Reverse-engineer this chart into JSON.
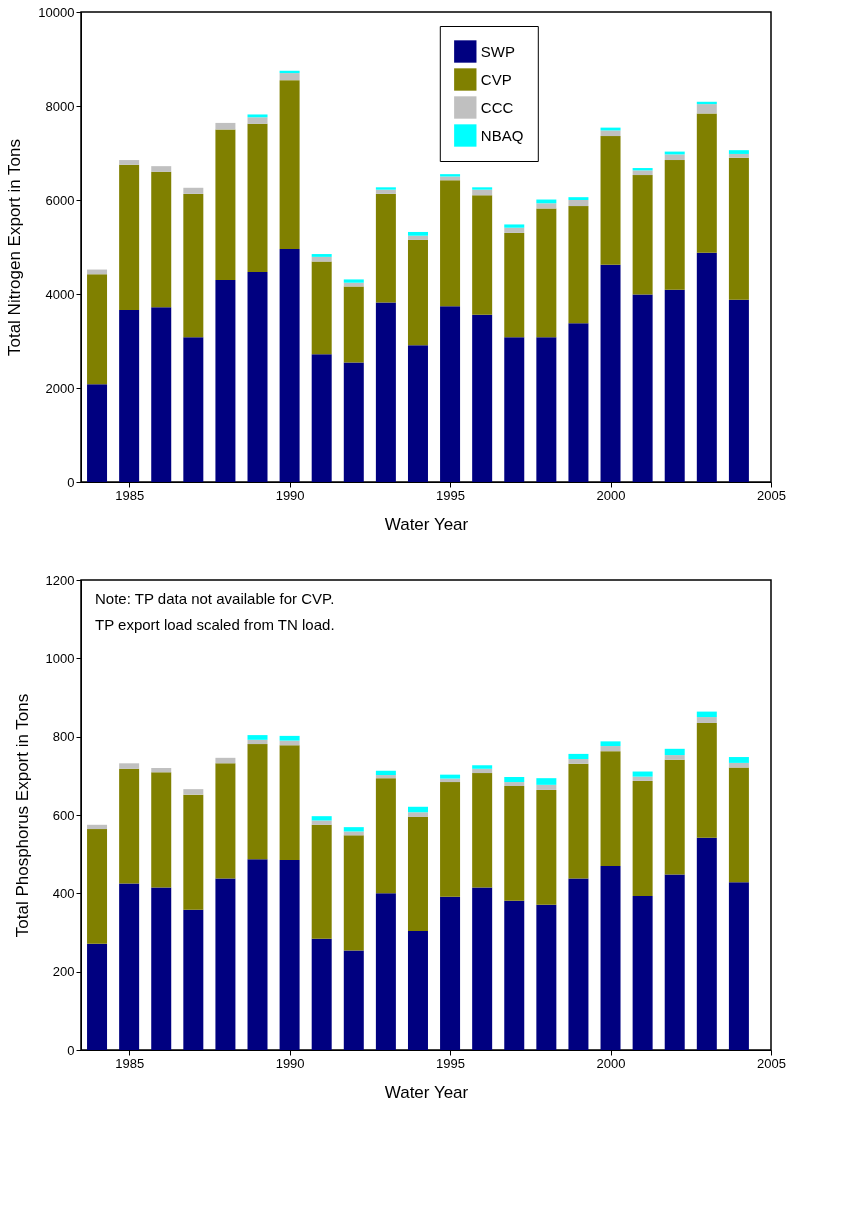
{
  "chart_data": [
    {
      "type": "bar",
      "stacked": true,
      "xlabel": "Water Year",
      "ylabel": "Total Nitrogen Export in Tons",
      "x": [
        1984,
        1985,
        1986,
        1987,
        1988,
        1989,
        1990,
        1991,
        1992,
        1993,
        1994,
        1995,
        1996,
        1997,
        1998,
        1999,
        2000,
        2001,
        2002,
        2003,
        2004
      ],
      "series": [
        {
          "name": "SWP",
          "color": "#000080",
          "values": [
            2080,
            3660,
            3720,
            3080,
            4300,
            4470,
            4960,
            2720,
            2540,
            3820,
            2910,
            3740,
            3560,
            3080,
            3080,
            3380,
            4620,
            3990,
            4090,
            4880,
            3880
          ]
        },
        {
          "name": "CVP",
          "color": "#808000",
          "values": [
            2340,
            3090,
            2880,
            3050,
            3200,
            3150,
            3590,
            1970,
            1620,
            2310,
            2240,
            2680,
            2540,
            2220,
            2740,
            2490,
            2740,
            2540,
            2760,
            2960,
            3020
          ]
        },
        {
          "name": "CCC",
          "color": "#c0c0c0",
          "values": [
            100,
            100,
            120,
            130,
            140,
            140,
            150,
            100,
            80,
            90,
            90,
            80,
            120,
            110,
            110,
            130,
            120,
            100,
            120,
            200,
            80
          ]
        },
        {
          "name": "NBAQ",
          "color": "#00ffff",
          "values": [
            0,
            0,
            0,
            0,
            0,
            60,
            50,
            60,
            70,
            50,
            80,
            50,
            50,
            70,
            80,
            60,
            60,
            50,
            60,
            50,
            80
          ]
        }
      ],
      "xlim": [
        1983.5,
        2005
      ],
      "xticks": [
        1985,
        1990,
        1995,
        2000,
        2005
      ],
      "ylim": [
        0,
        10000
      ],
      "yticks": [
        0,
        2000,
        4000,
        6000,
        8000,
        10000
      ],
      "legend": "top right",
      "grid": false
    },
    {
      "type": "bar",
      "stacked": true,
      "xlabel": "Water Year",
      "ylabel": "Total Phosphorus Export in Tons",
      "annotations": [
        "Note:  TP data not available for CVP.",
        "TP export load scaled from TN load."
      ],
      "x": [
        1984,
        1985,
        1986,
        1987,
        1988,
        1989,
        1990,
        1991,
        1992,
        1993,
        1994,
        1995,
        1996,
        1997,
        1998,
        1999,
        2000,
        2001,
        2002,
        2003,
        2004
      ],
      "series": [
        {
          "name": "SWP",
          "color": "#000080",
          "values": [
            271,
            425,
            415,
            358,
            438,
            487,
            485,
            284,
            254,
            400,
            304,
            391,
            415,
            381,
            371,
            438,
            470,
            393,
            448,
            542,
            428
          ]
        },
        {
          "name": "CVP",
          "color": "#808000",
          "values": [
            293,
            293,
            294,
            294,
            294,
            294,
            293,
            291,
            294,
            294,
            291,
            293,
            292,
            293,
            293,
            293,
            293,
            294,
            293,
            293,
            293
          ]
        },
        {
          "name": "CCC",
          "color": "#c0c0c0",
          "values": [
            11,
            14,
            11,
            14,
            14,
            11,
            12,
            11,
            10,
            8,
            12,
            9,
            11,
            10,
            13,
            12,
            13,
            11,
            12,
            15,
            12
          ]
        },
        {
          "name": "NBAQ",
          "color": "#00ffff",
          "values": [
            0,
            0,
            0,
            0,
            0,
            12,
            12,
            11,
            11,
            11,
            14,
            10,
            9,
            13,
            17,
            13,
            12,
            13,
            16,
            14,
            15
          ]
        }
      ],
      "xlim": [
        1983.5,
        2005
      ],
      "xticks": [
        1985,
        1990,
        1995,
        2000,
        2005
      ],
      "ylim": [
        0,
        1200
      ],
      "yticks": [
        0,
        200,
        400,
        600,
        800,
        1000,
        1200
      ],
      "legend": "top right",
      "grid": false
    }
  ]
}
